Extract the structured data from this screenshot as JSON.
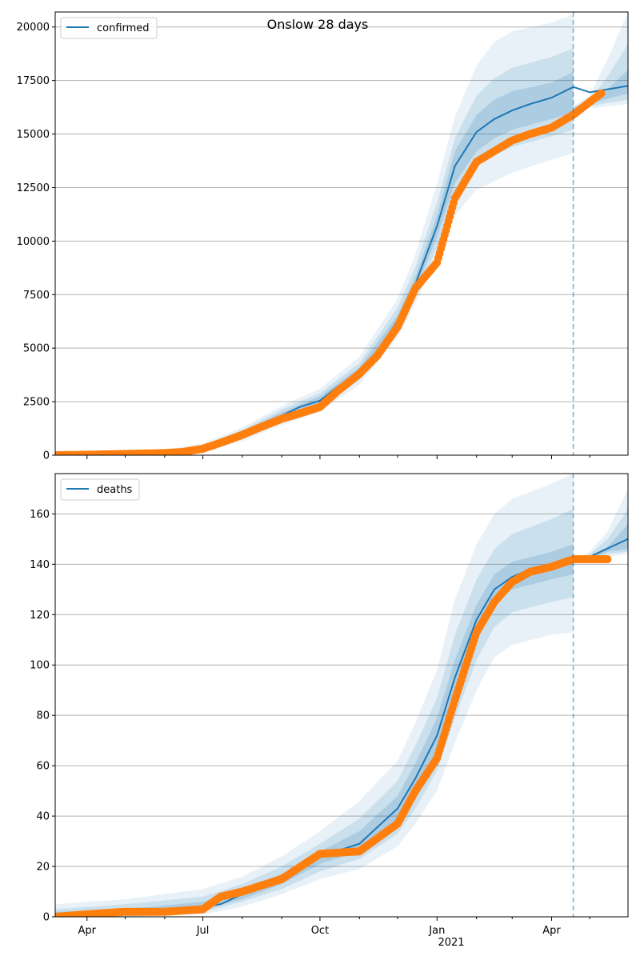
{
  "figure": {
    "title": "Onslow 28 days",
    "year_label": "2021"
  },
  "colors": {
    "model_line": "#1f77b4",
    "observed_points": "#ff7f0e",
    "band": "#1f77b4",
    "grid": "#b0b0b0",
    "divider": "#1f77b4"
  },
  "chart_data": [
    {
      "type": "line",
      "title": "Onslow 28 days",
      "xlabel": "",
      "ylabel": "",
      "x_range": [
        "2020-03-07",
        "2021-05-31"
      ],
      "ylim": [
        0,
        20700
      ],
      "y_ticks": [
        0,
        2500,
        5000,
        7500,
        10000,
        12500,
        15000,
        17500,
        20000
      ],
      "x_ticks": [
        {
          "date": "2020-04-01",
          "label": "Apr"
        },
        {
          "date": "2020-07-01",
          "label": "Jul"
        },
        {
          "date": "2020-10-01",
          "label": "Oct"
        },
        {
          "date": "2021-01-01",
          "label": "Jan"
        },
        {
          "date": "2021-04-01",
          "label": "Apr"
        }
      ],
      "grid": "horizontal",
      "legend": "top-left",
      "forecast_start": "2021-04-18",
      "series": [
        {
          "name": "confirmed",
          "kind": "model",
          "x": [
            "2020-03-07",
            "2020-04-01",
            "2020-05-01",
            "2020-06-01",
            "2020-06-15",
            "2020-07-01",
            "2020-07-15",
            "2020-08-01",
            "2020-08-15",
            "2020-09-01",
            "2020-09-15",
            "2020-10-01",
            "2020-10-15",
            "2020-11-01",
            "2020-11-15",
            "2020-12-01",
            "2020-12-15",
            "2021-01-01",
            "2021-01-15",
            "2021-02-01",
            "2021-02-15",
            "2021-03-01",
            "2021-03-15",
            "2021-04-01",
            "2021-04-18",
            "2021-05-01",
            "2021-05-31"
          ],
          "y": [
            0,
            20,
            60,
            100,
            150,
            320,
            600,
            1000,
            1400,
            1850,
            2250,
            2550,
            3200,
            3900,
            4800,
            6300,
            8000,
            10700,
            13500,
            15100,
            15700,
            16100,
            16400,
            16700,
            17200,
            16950,
            17250
          ]
        },
        {
          "kind": "observed",
          "x": [
            "2020-03-07",
            "2020-04-01",
            "2020-05-01",
            "2020-06-01",
            "2020-06-15",
            "2020-07-01",
            "2020-07-15",
            "2020-08-01",
            "2020-08-15",
            "2020-09-01",
            "2020-09-15",
            "2020-10-01",
            "2020-10-15",
            "2020-11-01",
            "2020-11-15",
            "2020-12-01",
            "2020-12-15",
            "2021-01-01",
            "2021-01-15",
            "2021-02-01",
            "2021-02-15",
            "2021-03-01",
            "2021-03-15",
            "2021-04-01",
            "2021-04-18",
            "2021-05-01",
            "2021-05-10"
          ],
          "y": [
            0,
            20,
            60,
            100,
            150,
            300,
            580,
            950,
            1300,
            1700,
            1950,
            2250,
            3000,
            3800,
            4650,
            6000,
            7800,
            9000,
            12000,
            13700,
            14200,
            14700,
            15000,
            15300,
            15900,
            16500,
            16900
          ]
        }
      ],
      "bands": [
        {
          "level": "outer",
          "x": [
            "2020-03-07",
            "2020-06-01",
            "2020-07-01",
            "2020-08-01",
            "2020-09-01",
            "2020-10-01",
            "2020-11-01",
            "2020-12-01",
            "2020-12-15",
            "2021-01-01",
            "2021-01-15",
            "2021-02-01",
            "2021-02-15",
            "2021-03-01",
            "2021-04-01",
            "2021-04-18"
          ],
          "low": [
            0,
            50,
            200,
            650,
            1400,
            2050,
            3300,
            5500,
            7100,
            9200,
            11200,
            12400,
            12800,
            13200,
            13800,
            14100
          ],
          "high": [
            200,
            250,
            550,
            1300,
            2300,
            3100,
            4600,
            7300,
            9400,
            12700,
            15800,
            18200,
            19300,
            19800,
            20200,
            20600
          ]
        },
        {
          "level": "middle",
          "x": [
            "2020-03-07",
            "2020-06-01",
            "2020-07-01",
            "2020-08-01",
            "2020-09-01",
            "2020-10-01",
            "2020-11-01",
            "2020-12-01",
            "2020-12-15",
            "2021-01-01",
            "2021-01-15",
            "2021-02-01",
            "2021-02-15",
            "2021-03-01",
            "2021-04-01",
            "2021-04-18"
          ],
          "low": [
            0,
            70,
            240,
            760,
            1560,
            2240,
            3500,
            5800,
            7400,
            9700,
            12000,
            13500,
            14000,
            14400,
            14900,
            15200
          ],
          "high": [
            140,
            180,
            440,
            1180,
            2140,
            2900,
            4300,
            6900,
            8800,
            11800,
            14800,
            16800,
            17600,
            18100,
            18600,
            19000
          ]
        },
        {
          "level": "inner",
          "x": [
            "2020-03-07",
            "2020-06-01",
            "2020-07-01",
            "2020-08-01",
            "2020-09-01",
            "2020-10-01",
            "2020-11-01",
            "2020-12-01",
            "2020-12-15",
            "2021-01-01",
            "2021-01-15",
            "2021-02-01",
            "2021-02-15",
            "2021-03-01",
            "2021-04-01",
            "2021-04-18"
          ],
          "low": [
            0,
            85,
            280,
            860,
            1700,
            2400,
            3700,
            6050,
            7700,
            10200,
            12700,
            14200,
            14800,
            15200,
            15700,
            16000
          ],
          "high": [
            90,
            130,
            380,
            1100,
            2000,
            2750,
            4100,
            6550,
            8350,
            11200,
            14200,
            15900,
            16600,
            17000,
            17400,
            17900
          ]
        },
        {
          "level": "outer",
          "x": [
            "2021-04-18",
            "2021-05-01",
            "2021-05-15",
            "2021-05-31"
          ],
          "low": [
            16100,
            16200,
            16300,
            16400
          ],
          "high": [
            16300,
            16800,
            18500,
            20700
          ]
        },
        {
          "level": "middle",
          "x": [
            "2021-04-18",
            "2021-05-01",
            "2021-05-15",
            "2021-05-31"
          ],
          "low": [
            16150,
            16300,
            16450,
            16600
          ],
          "high": [
            16250,
            16600,
            17700,
            19200
          ]
        },
        {
          "level": "inner",
          "x": [
            "2021-04-18",
            "2021-05-01",
            "2021-05-15",
            "2021-05-31"
          ],
          "low": [
            16200,
            16400,
            16650,
            16900
          ],
          "high": [
            16250,
            16450,
            17100,
            18000
          ]
        }
      ]
    },
    {
      "type": "line",
      "xlabel": "",
      "ylabel": "",
      "x_range": [
        "2020-03-07",
        "2021-05-31"
      ],
      "ylim": [
        0,
        176
      ],
      "y_ticks": [
        0,
        20,
        40,
        60,
        80,
        100,
        120,
        140,
        160
      ],
      "x_ticks": [
        {
          "date": "2020-04-01",
          "label": "Apr"
        },
        {
          "date": "2020-07-01",
          "label": "Jul"
        },
        {
          "date": "2020-10-01",
          "label": "Oct"
        },
        {
          "date": "2021-01-01",
          "label": "Jan"
        },
        {
          "date": "2021-04-01",
          "label": "Apr"
        }
      ],
      "grid": "horizontal",
      "legend": "top-left",
      "forecast_start": "2021-04-18",
      "series": [
        {
          "name": "deaths",
          "kind": "model",
          "x": [
            "2020-03-07",
            "2020-04-01",
            "2020-05-01",
            "2020-06-01",
            "2020-07-01",
            "2020-07-15",
            "2020-08-01",
            "2020-09-01",
            "2020-10-01",
            "2020-11-01",
            "2020-12-01",
            "2020-12-15",
            "2021-01-01",
            "2021-01-15",
            "2021-02-01",
            "2021-02-15",
            "2021-03-01",
            "2021-03-15",
            "2021-04-01",
            "2021-04-18",
            "2021-05-01",
            "2021-05-31"
          ],
          "y": [
            0,
            1,
            2,
            2,
            4,
            5,
            9,
            15,
            24,
            29,
            43,
            55,
            72,
            95,
            118,
            130,
            135,
            138,
            139,
            141,
            143,
            150
          ]
        },
        {
          "kind": "observed",
          "x": [
            "2020-03-07",
            "2020-04-01",
            "2020-05-01",
            "2020-06-01",
            "2020-07-01",
            "2020-07-15",
            "2020-08-01",
            "2020-09-01",
            "2020-10-01",
            "2020-11-01",
            "2020-12-01",
            "2020-12-15",
            "2021-01-01",
            "2021-01-15",
            "2021-02-01",
            "2021-02-15",
            "2021-03-01",
            "2021-03-15",
            "2021-04-01",
            "2021-04-18",
            "2021-05-01",
            "2021-05-15"
          ],
          "y": [
            0,
            1,
            2,
            2,
            3,
            8,
            10,
            15,
            25,
            26,
            37,
            50,
            63,
            86,
            113,
            125,
            133,
            137,
            139,
            142,
            142,
            142
          ]
        }
      ],
      "bands": [
        {
          "level": "outer",
          "x": [
            "2020-03-07",
            "2020-05-01",
            "2020-07-01",
            "2020-08-01",
            "2020-09-01",
            "2020-10-01",
            "2020-11-01",
            "2020-12-01",
            "2020-12-15",
            "2021-01-01",
            "2021-01-15",
            "2021-02-01",
            "2021-02-15",
            "2021-03-01",
            "2021-04-01",
            "2021-04-18"
          ],
          "low": [
            0,
            0,
            1,
            4,
            9,
            15,
            19,
            28,
            37,
            50,
            69,
            90,
            103,
            108,
            112,
            113
          ],
          "high": [
            5,
            7,
            11,
            16,
            24,
            34,
            46,
            62,
            77,
            98,
            126,
            148,
            160,
            166,
            172,
            176
          ]
        },
        {
          "level": "middle",
          "x": [
            "2020-03-07",
            "2020-05-01",
            "2020-07-01",
            "2020-08-01",
            "2020-09-01",
            "2020-10-01",
            "2020-11-01",
            "2020-12-01",
            "2020-12-15",
            "2021-01-01",
            "2021-01-15",
            "2021-02-01",
            "2021-02-15",
            "2021-03-01",
            "2021-04-01",
            "2021-04-18"
          ],
          "low": [
            0,
            0,
            2,
            6,
            11,
            18,
            23,
            33,
            43,
            58,
            79,
            102,
            115,
            121,
            125,
            127
          ],
          "high": [
            3,
            5,
            8,
            13,
            20,
            29,
            39,
            54,
            68,
            87,
            112,
            134,
            146,
            152,
            158,
            162
          ]
        },
        {
          "level": "inner",
          "x": [
            "2020-03-07",
            "2020-05-01",
            "2020-07-01",
            "2020-08-01",
            "2020-09-01",
            "2020-10-01",
            "2020-11-01",
            "2020-12-01",
            "2020-12-15",
            "2021-01-01",
            "2021-01-15",
            "2021-02-01",
            "2021-02-15",
            "2021-03-01",
            "2021-04-01",
            "2021-04-18"
          ],
          "low": [
            0,
            1,
            3,
            7,
            13,
            21,
            26,
            38,
            49,
            65,
            88,
            112,
            125,
            130,
            134,
            136
          ],
          "high": [
            2,
            3,
            6,
            11,
            17,
            26,
            34,
            48,
            61,
            79,
            102,
            124,
            136,
            141,
            145,
            148
          ]
        },
        {
          "level": "outer",
          "x": [
            "2021-04-18",
            "2021-05-01",
            "2021-05-15",
            "2021-05-31"
          ],
          "low": [
            141,
            142,
            143,
            144
          ],
          "high": [
            142,
            145,
            153,
            170
          ]
        },
        {
          "level": "middle",
          "x": [
            "2021-04-18",
            "2021-05-01",
            "2021-05-15",
            "2021-05-31"
          ],
          "low": [
            141,
            142,
            144,
            145
          ],
          "high": [
            142,
            144,
            150,
            162
          ]
        },
        {
          "level": "inner",
          "x": [
            "2021-04-18",
            "2021-05-01",
            "2021-05-15",
            "2021-05-31"
          ],
          "low": [
            141,
            142,
            145,
            146
          ],
          "high": [
            142,
            143,
            147,
            156
          ]
        }
      ]
    }
  ]
}
